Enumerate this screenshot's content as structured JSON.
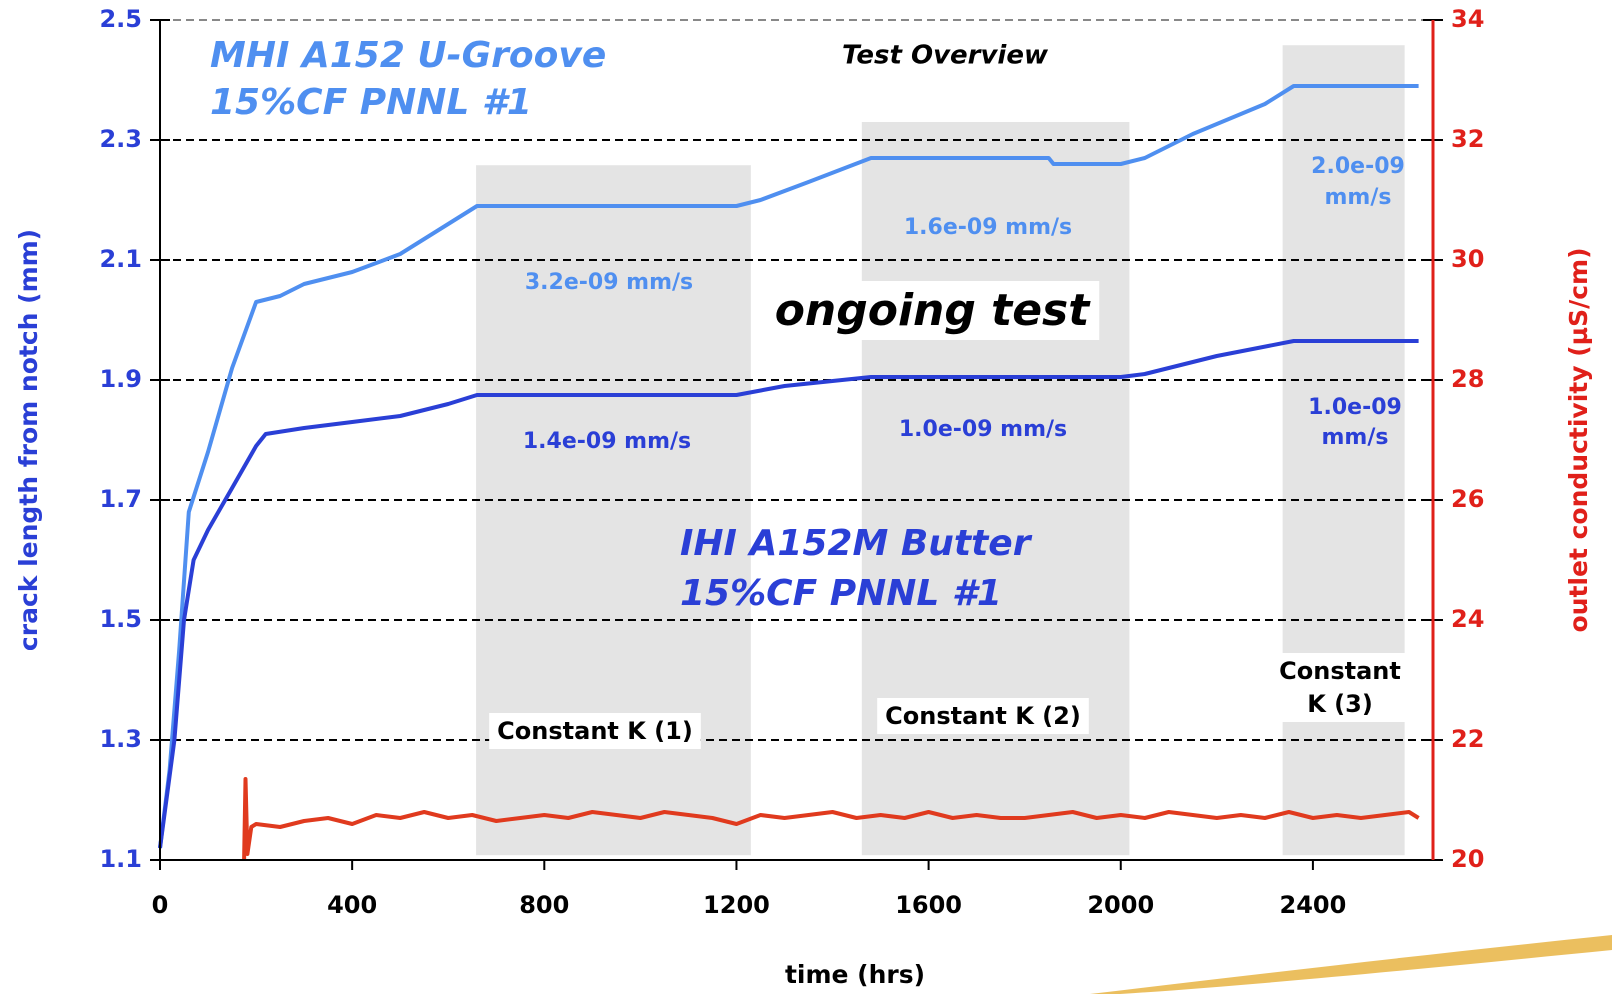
{
  "chart_data": {
    "type": "line",
    "xlabel": "time (hrs)",
    "ylabel": "crack length from notch (mm)",
    "y2label": "outlet conductivity (µS/cm)",
    "xlim": [
      0,
      2650
    ],
    "xticks": [
      0,
      400,
      800,
      1200,
      1600,
      2000,
      2400
    ],
    "ylim": [
      1.1,
      2.5
    ],
    "yticks": [
      1.1,
      1.3,
      1.5,
      1.7,
      1.9,
      2.1,
      2.3,
      2.5
    ],
    "y2lim": [
      20,
      34
    ],
    "y2ticks": [
      20,
      22,
      24,
      26,
      28,
      30,
      32,
      34
    ],
    "grid": true,
    "shaded_regions": [
      {
        "xrange": [
          658,
          1230
        ],
        "yrange": [
          1.108,
          2.258
        ]
      },
      {
        "xrange": [
          1461,
          2018
        ],
        "yrange": [
          1.108,
          2.33
        ]
      },
      {
        "xrange": [
          2337,
          2591
        ],
        "yrange": [
          1.108,
          2.458
        ]
      }
    ],
    "series": [
      {
        "color": "#4f8ff0",
        "axis": "y",
        "x": [
          0,
          20,
          40,
          60,
          100,
          150,
          200,
          250,
          300,
          400,
          500,
          600,
          660,
          700,
          800,
          1000,
          1200,
          1250,
          1350,
          1480,
          1600,
          1800,
          1850,
          1860,
          2000,
          2050,
          2150,
          2300,
          2360,
          2400,
          2500,
          2620
        ],
        "values": [
          1.12,
          1.25,
          1.45,
          1.68,
          1.78,
          1.92,
          2.03,
          2.04,
          2.06,
          2.08,
          2.11,
          2.16,
          2.19,
          2.19,
          2.19,
          2.19,
          2.19,
          2.2,
          2.23,
          2.27,
          2.27,
          2.27,
          2.27,
          2.26,
          2.26,
          2.27,
          2.31,
          2.36,
          2.39,
          2.39,
          2.39,
          2.39
        ]
      },
      {
        "color": "#2a3fd6",
        "axis": "y",
        "x": [
          0,
          30,
          50,
          70,
          100,
          150,
          200,
          220,
          300,
          400,
          500,
          600,
          660,
          800,
          1000,
          1200,
          1300,
          1480,
          1600,
          1800,
          2000,
          2050,
          2200,
          2360,
          2620
        ],
        "values": [
          1.12,
          1.3,
          1.5,
          1.6,
          1.65,
          1.72,
          1.79,
          1.81,
          1.82,
          1.83,
          1.84,
          1.86,
          1.875,
          1.875,
          1.875,
          1.875,
          1.89,
          1.905,
          1.905,
          1.905,
          1.905,
          1.91,
          1.94,
          1.965,
          1.965
        ]
      },
      {
        "color": "#e03a1e",
        "axis": "y2",
        "x": [
          175,
          178,
          182,
          190,
          200,
          250,
          300,
          350,
          400,
          450,
          500,
          550,
          600,
          650,
          700,
          750,
          800,
          850,
          900,
          950,
          1000,
          1050,
          1100,
          1150,
          1200,
          1250,
          1300,
          1350,
          1400,
          1450,
          1500,
          1550,
          1600,
          1650,
          1700,
          1750,
          1800,
          1850,
          1900,
          1950,
          2000,
          2050,
          2100,
          2150,
          2200,
          2250,
          2300,
          2350,
          2400,
          2450,
          2500,
          2550,
          2600,
          2620
        ],
        "values": [
          20.0,
          21.35,
          20.1,
          20.55,
          20.6,
          20.55,
          20.65,
          20.7,
          20.6,
          20.75,
          20.7,
          20.8,
          20.7,
          20.75,
          20.65,
          20.7,
          20.75,
          20.7,
          20.8,
          20.75,
          20.7,
          20.8,
          20.75,
          20.7,
          20.6,
          20.75,
          20.7,
          20.75,
          20.8,
          20.7,
          20.75,
          20.7,
          20.8,
          20.7,
          20.75,
          20.7,
          20.7,
          20.75,
          20.8,
          20.7,
          20.75,
          20.7,
          20.8,
          20.75,
          20.7,
          20.75,
          20.7,
          20.8,
          20.7,
          20.75,
          20.7,
          20.75,
          20.8,
          20.7
        ]
      }
    ],
    "annotations": [
      {
        "lines": [
          "MHI A152 U-Groove",
          "15%CF PNNL #1"
        ]
      },
      {
        "lines": [
          "Test Overview"
        ]
      },
      {
        "lines": [
          "3.2e-09 mm/s"
        ]
      },
      {
        "lines": [
          "1.6e-09 mm/s"
        ]
      },
      {
        "lines": [
          "2.0e-09",
          "mm/s"
        ]
      },
      {
        "lines": [
          "ongoing test"
        ]
      },
      {
        "lines": [
          "1.4e-09 mm/s"
        ]
      },
      {
        "lines": [
          "1.0e-09 mm/s"
        ]
      },
      {
        "lines": [
          "1.0e-09",
          "mm/s"
        ]
      },
      {
        "lines": [
          "IHI A152M Butter",
          "15%CF PNNL #1"
        ]
      },
      {
        "lines": [
          "Constant K (1)"
        ]
      },
      {
        "lines": [
          "Constant K (2)"
        ]
      },
      {
        "lines": [
          "Constant",
          "K (3)"
        ]
      }
    ]
  }
}
